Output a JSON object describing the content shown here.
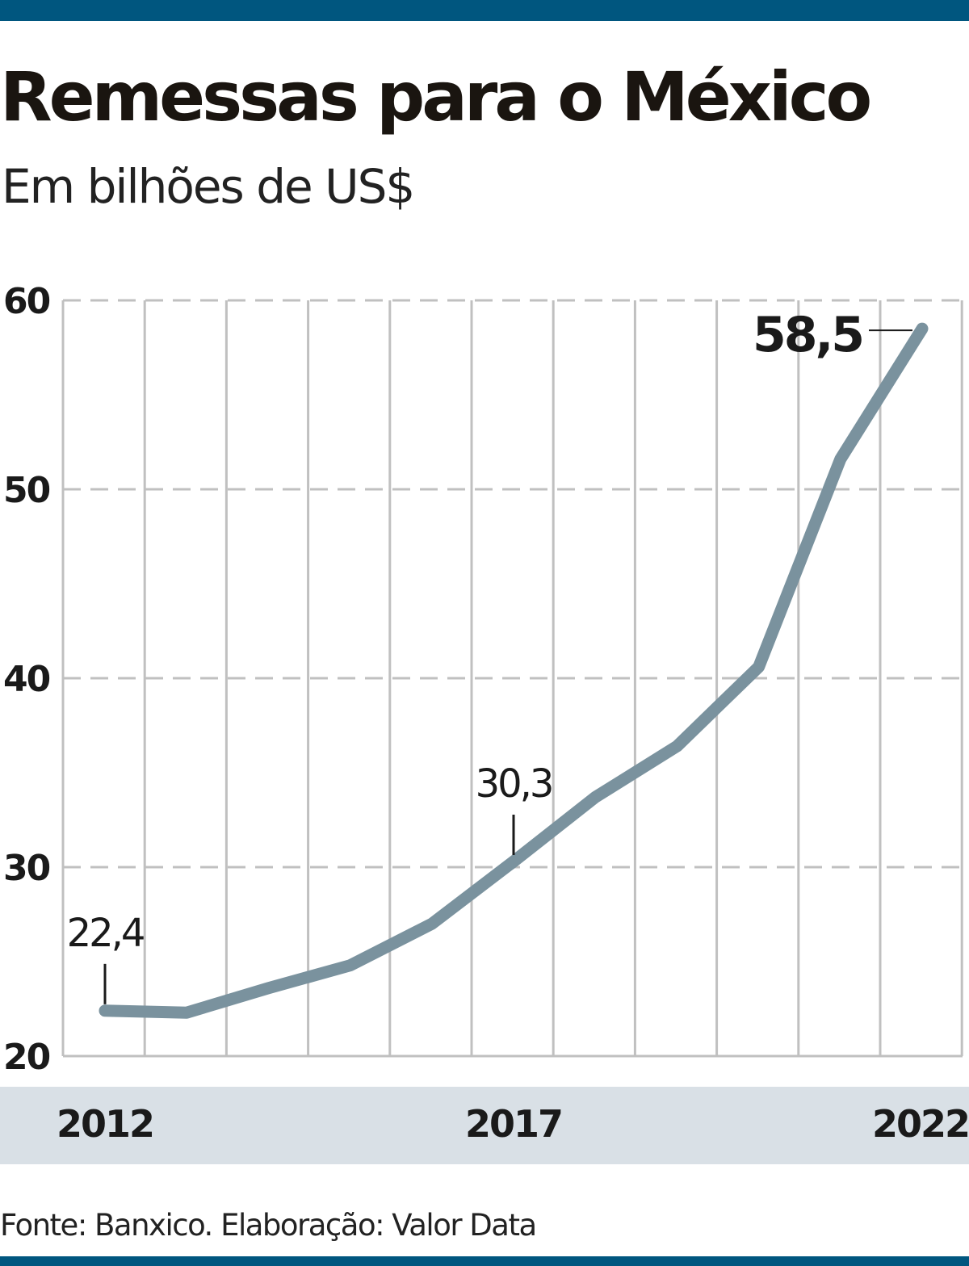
{
  "header": {
    "title": "Remessas para o México",
    "subtitle": "Em bilhões de US$"
  },
  "footer": {
    "source": "Fonte: Banxico. Elaboração: Valor Data"
  },
  "colors": {
    "line": "#7a929e",
    "axis_band": "#d9e0e6",
    "grid": "#c0c0c0",
    "bar": "#00567f"
  },
  "chart_data": {
    "type": "line",
    "title": "Remessas para o México",
    "subtitle": "Em bilhões de US$",
    "x": [
      2012,
      2013,
      2014,
      2015,
      2016,
      2017,
      2018,
      2019,
      2020,
      2021,
      2022
    ],
    "series": [
      {
        "values": [
          22.4,
          22.3,
          23.6,
          24.8,
          27.0,
          30.3,
          33.7,
          36.4,
          40.6,
          51.6,
          58.5
        ]
      }
    ],
    "ylim": [
      20,
      60
    ],
    "yticks": [
      "20",
      "30",
      "40",
      "50",
      "60"
    ],
    "xtick_labels": [
      {
        "x": 2012,
        "label": "2012"
      },
      {
        "x": 2017,
        "label": "2017"
      },
      {
        "x": 2022,
        "label": "2022"
      }
    ],
    "annotations": [
      {
        "x": 2012,
        "label": "22,4",
        "bold": false
      },
      {
        "x": 2017,
        "label": "30,3",
        "bold": false
      },
      {
        "x": 2022,
        "label": "58,5",
        "bold": true
      }
    ],
    "grid": true
  }
}
